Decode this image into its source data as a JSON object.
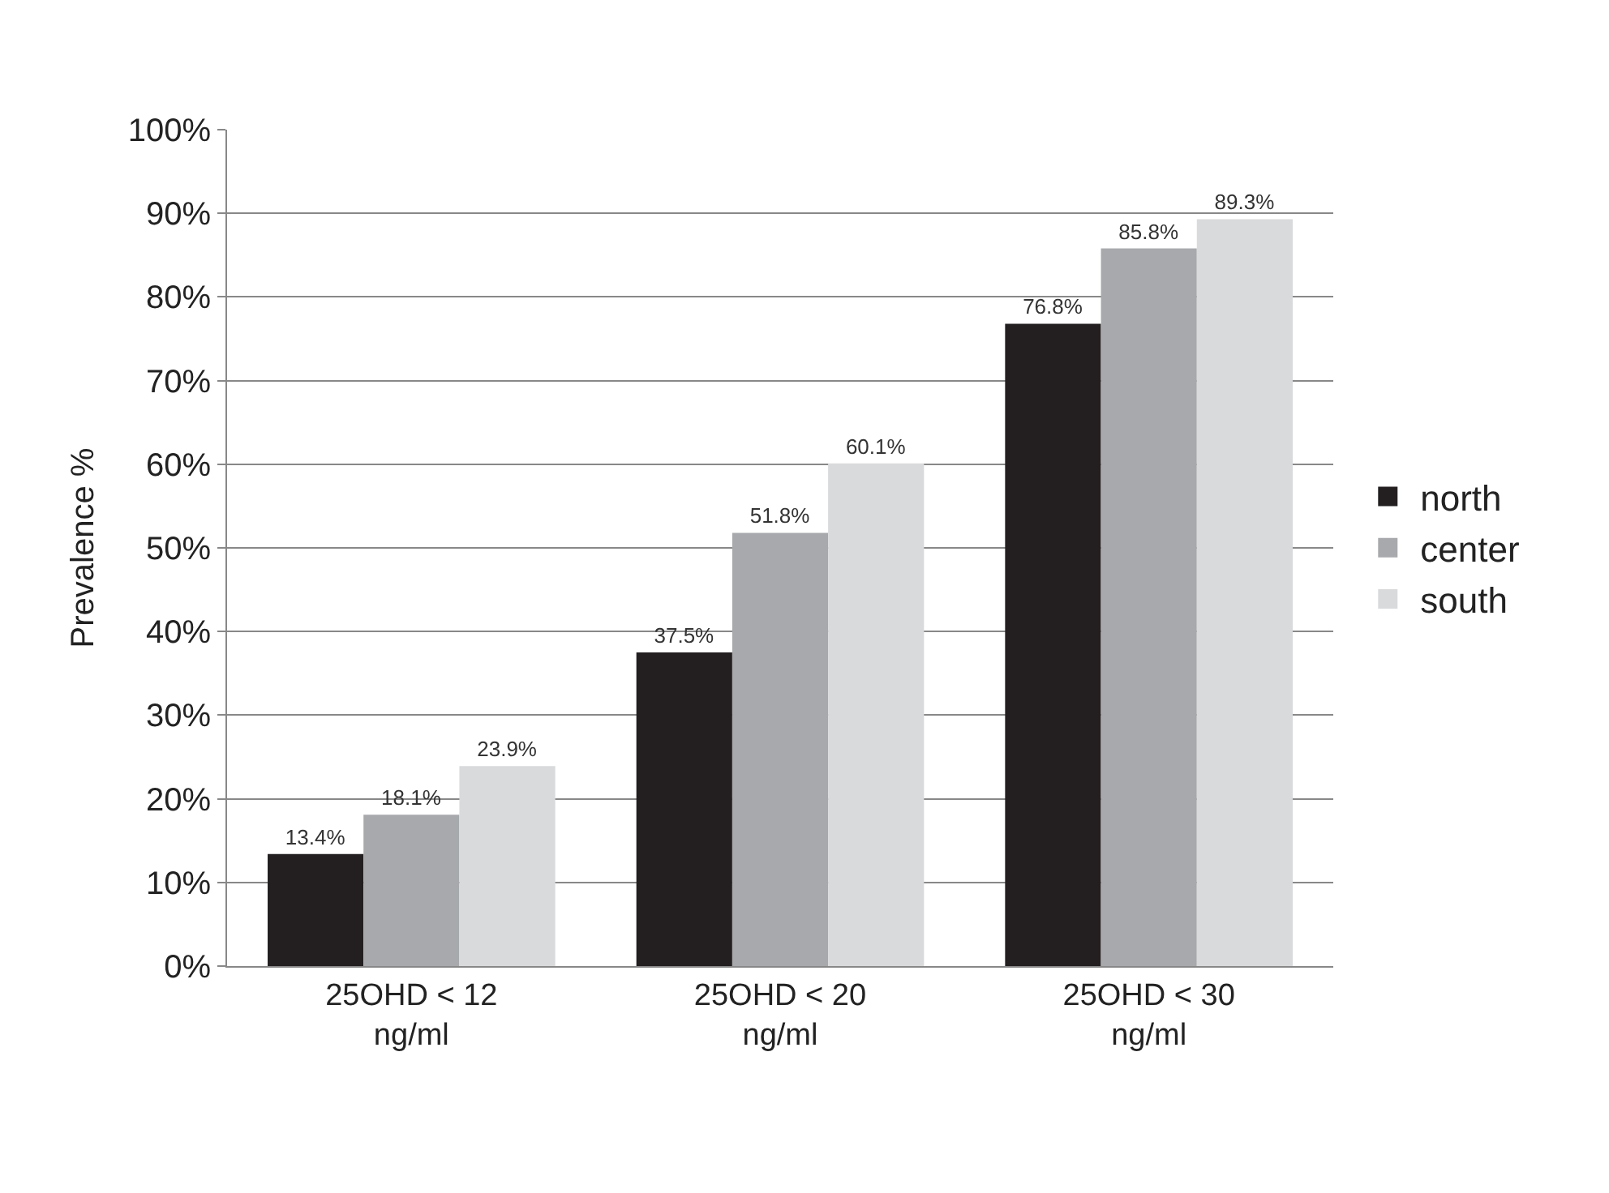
{
  "chart_data": {
    "type": "bar",
    "ylabel": "Prevalence %",
    "categories": [
      "25OHD < 12\nng/ml",
      "25OHD < 20\nng/ml",
      "25OHD < 30\nng/ml"
    ],
    "series": [
      {
        "name": "north",
        "color": "#231f20",
        "values": [
          13.4,
          37.5,
          76.8
        ],
        "value_labels": [
          "13.4%",
          "37.5%",
          "76.8%"
        ]
      },
      {
        "name": "center",
        "color": "#a7a9ac",
        "values": [
          18.1,
          51.8,
          85.8
        ],
        "value_labels": [
          "18.1%",
          "51.8%",
          "85.8%"
        ]
      },
      {
        "name": "south",
        "color": "#d9dadb",
        "values": [
          23.9,
          60.1,
          89.3
        ],
        "value_labels": [
          "23.9%",
          "60.1%",
          "89.3%"
        ]
      }
    ],
    "ylim": [
      0,
      100
    ],
    "yticks": [
      {
        "value": 0,
        "label": "0%"
      },
      {
        "value": 10,
        "label": "10%"
      },
      {
        "value": 20,
        "label": "20%"
      },
      {
        "value": 30,
        "label": "30%"
      },
      {
        "value": 40,
        "label": "40%"
      },
      {
        "value": 50,
        "label": "50%"
      },
      {
        "value": 60,
        "label": "60%"
      },
      {
        "value": 70,
        "label": "70%"
      },
      {
        "value": 80,
        "label": "80%"
      },
      {
        "value": 90,
        "label": "90%"
      },
      {
        "value": 100,
        "label": "100%"
      }
    ],
    "grid": "y",
    "legend": "right"
  }
}
